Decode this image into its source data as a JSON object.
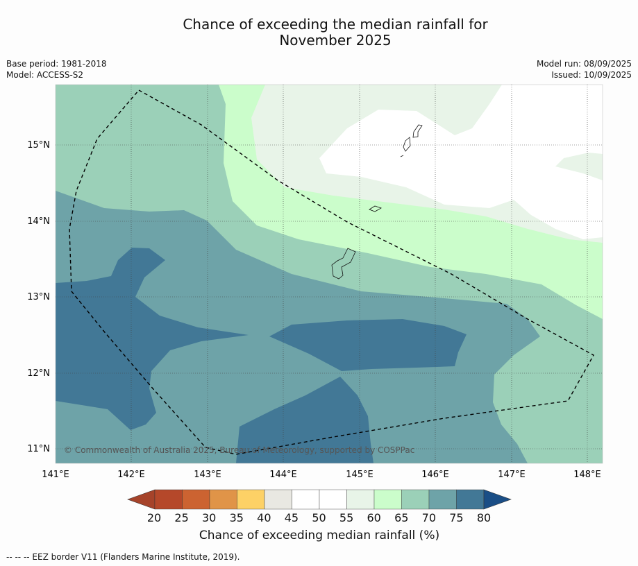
{
  "title": {
    "line1": "Chance of exceeding the median rainfall for",
    "line2": "November 2025"
  },
  "meta_left": {
    "base_period": "Base period: 1981-2018",
    "model": "Model: ACCESS-S2"
  },
  "meta_right": {
    "model_run": "Model run: 08/09/2025",
    "issued": "Issued: 10/09/2025"
  },
  "map": {
    "lat_labels": [
      "15°N",
      "14°N",
      "13°N",
      "12°N",
      "11°N"
    ],
    "lon_labels": [
      "141°E",
      "142°E",
      "143°E",
      "144°E",
      "145°E",
      "146°E",
      "147°E",
      "148°E"
    ],
    "copyright": "© Commonwealth of Australia 2025, Bureau of Meteorology, supported by COSPPac"
  },
  "colorbar": {
    "ticks": [
      "20",
      "25",
      "30",
      "35",
      "40",
      "45",
      "50",
      "55",
      "60",
      "65",
      "70",
      "75",
      "80"
    ],
    "colors": [
      "#b5482a",
      "#cc6331",
      "#e09448",
      "#fdd166",
      "#e9e8e2",
      "#ffffff",
      "#ffffff",
      "#e8f4e8",
      "#cbfdcb",
      "#9bd0b8",
      "#6ea3a8",
      "#427896"
    ],
    "under_color": "#a6432a",
    "over_color": "#1a4e86",
    "title": "Chance of exceeding median rainfall (%)"
  },
  "footer": "-- -- -- EEZ border V11 (Flanders Marine Institute, 2019)."
}
